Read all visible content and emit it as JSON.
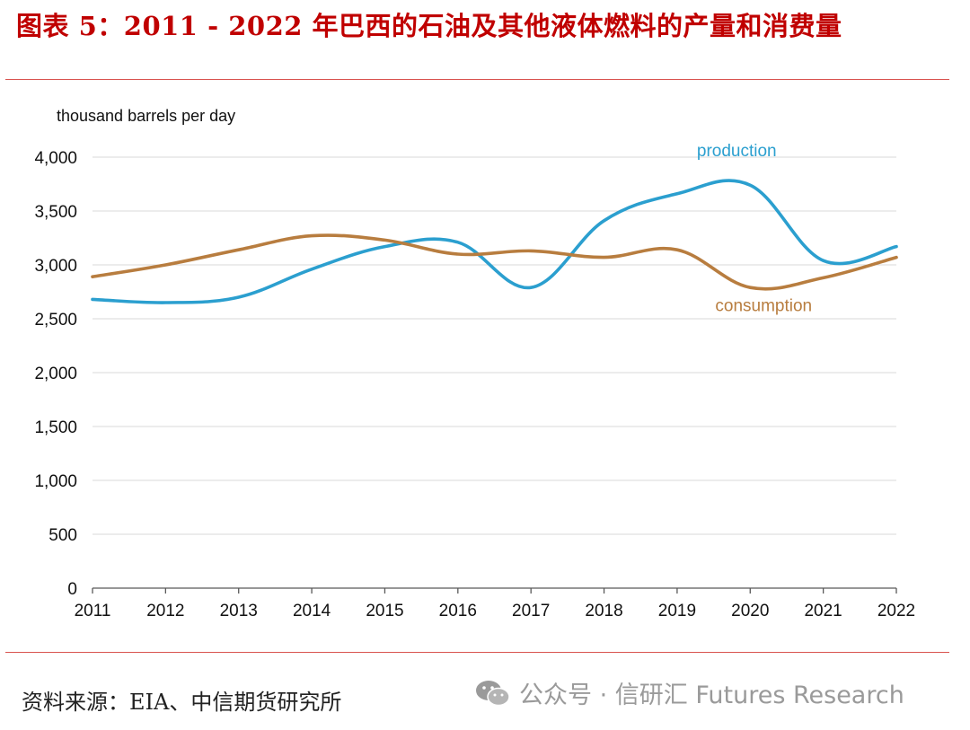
{
  "title": "图表 5：2011 - 2022 年巴西的石油及其他液体燃料的产量和消费量",
  "footer": {
    "source": "资料来源：EIA、中信期货研究所",
    "watermark": "公众号 · 信研汇 Futures Research",
    "watermark_icon": "wechat-icon"
  },
  "colors": {
    "title": "#c00000",
    "rule": "#d9534f",
    "production": "#2b9fcf",
    "consumption": "#b87d3f",
    "grid": "#d9d9d9"
  },
  "chart_data": {
    "type": "line",
    "ylabel": "thousand barrels per day",
    "xlabel": "",
    "x": [
      2011,
      2012,
      2013,
      2014,
      2015,
      2016,
      2017,
      2018,
      2019,
      2020,
      2021,
      2022
    ],
    "ylim": [
      0,
      4000
    ],
    "yticks": [
      0,
      500,
      1000,
      1500,
      2000,
      2500,
      3000,
      3500,
      4000
    ],
    "ytick_labels": [
      "0",
      "500",
      "1,000",
      "1,500",
      "2,000",
      "2,500",
      "3,000",
      "3,500",
      "4,000"
    ],
    "grid": "horizontal",
    "series": [
      {
        "name": "production",
        "color": "#2b9fcf",
        "values": [
          2680,
          2650,
          2700,
          2960,
          3170,
          3210,
          2790,
          3410,
          3660,
          3740,
          3040,
          3170
        ]
      },
      {
        "name": "consumption",
        "color": "#b87d3f",
        "values": [
          2890,
          3000,
          3140,
          3270,
          3230,
          3100,
          3130,
          3070,
          3140,
          2790,
          2880,
          3070
        ]
      }
    ]
  }
}
